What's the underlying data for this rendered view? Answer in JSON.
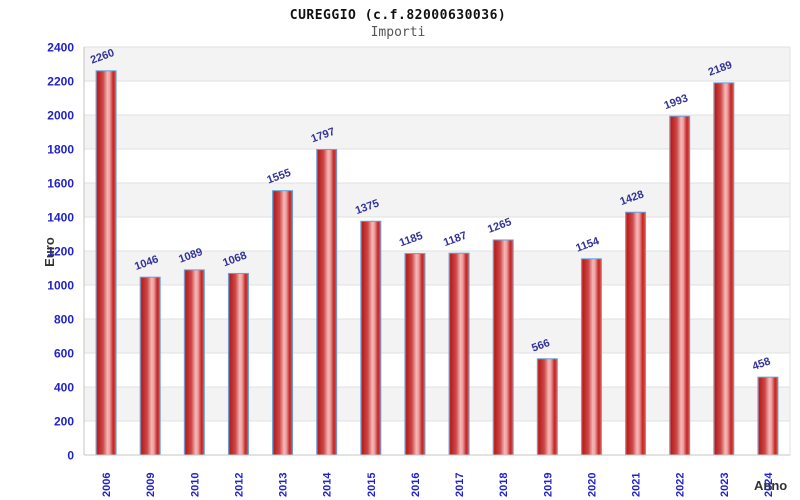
{
  "header": {
    "title": "CUREGGIO (c.f.82000630036)",
    "subtitle": "Importi"
  },
  "chart_data": {
    "type": "bar",
    "title": "CUREGGIO (c.f.82000630036)",
    "subtitle": "Importi",
    "xlabel": "Anno",
    "ylabel": "Euro",
    "categories": [
      "2006",
      "2009",
      "2010",
      "2012",
      "2013",
      "2014",
      "2015",
      "2016",
      "2017",
      "2018",
      "2019",
      "2020",
      "2021",
      "2022",
      "2023",
      "2024"
    ],
    "values": [
      2260,
      1046,
      1089,
      1068,
      1555,
      1797,
      1375,
      1185,
      1187,
      1265,
      566,
      1154,
      1428,
      1993,
      2189,
      458
    ],
    "ylim": [
      0,
      2400
    ],
    "yticks": [
      0,
      200,
      400,
      600,
      800,
      1000,
      1200,
      1400,
      1600,
      1800,
      2000,
      2200,
      2400
    ],
    "grid": true,
    "legend": false,
    "band_pattern": "alternating horizontal bands, gray on top band",
    "colors": {
      "title": "#111111",
      "subtitle": "#555555",
      "axis_title": "#333333",
      "tick_label": "#2222cc",
      "value_label": "#333399",
      "bar_edge": "#63a2dd",
      "bar_gradient": [
        [
          "0%",
          "#e8806e"
        ],
        [
          "7%",
          "#b81c1c"
        ],
        [
          "35%",
          "#cc4848"
        ],
        [
          "57%",
          "#f4b8b8"
        ],
        [
          "68%",
          "#eda0a0"
        ],
        [
          "86%",
          "#c42222"
        ],
        [
          "100%",
          "#e06050"
        ]
      ],
      "band_gray": "#f3f3f3",
      "band_white": "#ffffff",
      "gridline": "#e2e2e2",
      "axis_line": "#c4c4c4"
    }
  }
}
